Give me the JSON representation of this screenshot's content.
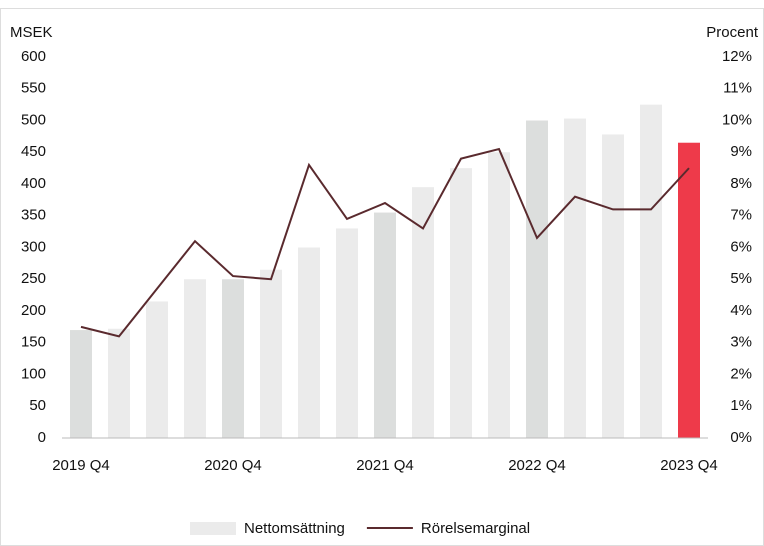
{
  "chart_data": {
    "type": "bar_line",
    "y_label": "MSEK",
    "y2_label": "Procent",
    "categories": [
      "2019 Q4",
      null,
      null,
      null,
      "2020 Q4",
      null,
      null,
      null,
      "2021 Q4",
      null,
      null,
      null,
      "2022 Q4",
      null,
      null,
      null,
      "2023 Q4"
    ],
    "series": [
      {
        "name": "Nettomsättning",
        "type": "bar",
        "color": "#ebebeb",
        "colors": [
          "#dcdedd",
          "#ebebeb",
          "#ebebeb",
          "#ebebeb",
          "#dcdedd",
          "#ebebeb",
          "#ebebeb",
          "#ebebeb",
          "#dcdedd",
          "#ebebeb",
          "#ebebeb",
          "#ebebeb",
          "#dcdedd",
          "#ebebeb",
          "#ebebeb",
          "#ebebeb",
          "#ee3a4a"
        ],
        "values": [
          170,
          172,
          215,
          250,
          250,
          265,
          300,
          330,
          355,
          395,
          425,
          450,
          500,
          503,
          478,
          525,
          465
        ]
      },
      {
        "name": "Rörelsemarginal",
        "type": "line",
        "axis": "y2",
        "color": "#5a2a2e",
        "values": [
          3.5,
          3.2,
          4.7,
          6.2,
          5.1,
          5.0,
          8.6,
          6.9,
          7.4,
          6.6,
          8.8,
          9.1,
          6.3,
          7.6,
          7.2,
          7.2,
          8.5
        ]
      }
    ],
    "ylim": [
      0,
      600
    ],
    "yticks": [
      0,
      50,
      100,
      150,
      200,
      250,
      300,
      350,
      400,
      450,
      500,
      550,
      600
    ],
    "y2lim": [
      0,
      12
    ],
    "y2ticks": [
      {
        "value": 0,
        "label": "0%"
      },
      {
        "value": 1,
        "label": "1%"
      },
      {
        "value": 2,
        "label": "2%"
      },
      {
        "value": 3,
        "label": "3%"
      },
      {
        "value": 4,
        "label": "4%"
      },
      {
        "value": 5,
        "label": "5%"
      },
      {
        "value": 6,
        "label": "6%"
      },
      {
        "value": 7,
        "label": "7%"
      },
      {
        "value": 8,
        "label": "8%"
      },
      {
        "value": 9,
        "label": "9%"
      },
      {
        "value": 10,
        "label": "10%"
      },
      {
        "value": 11,
        "label": "11%"
      },
      {
        "value": 12,
        "label": "12%"
      }
    ],
    "legend": "bottom"
  }
}
